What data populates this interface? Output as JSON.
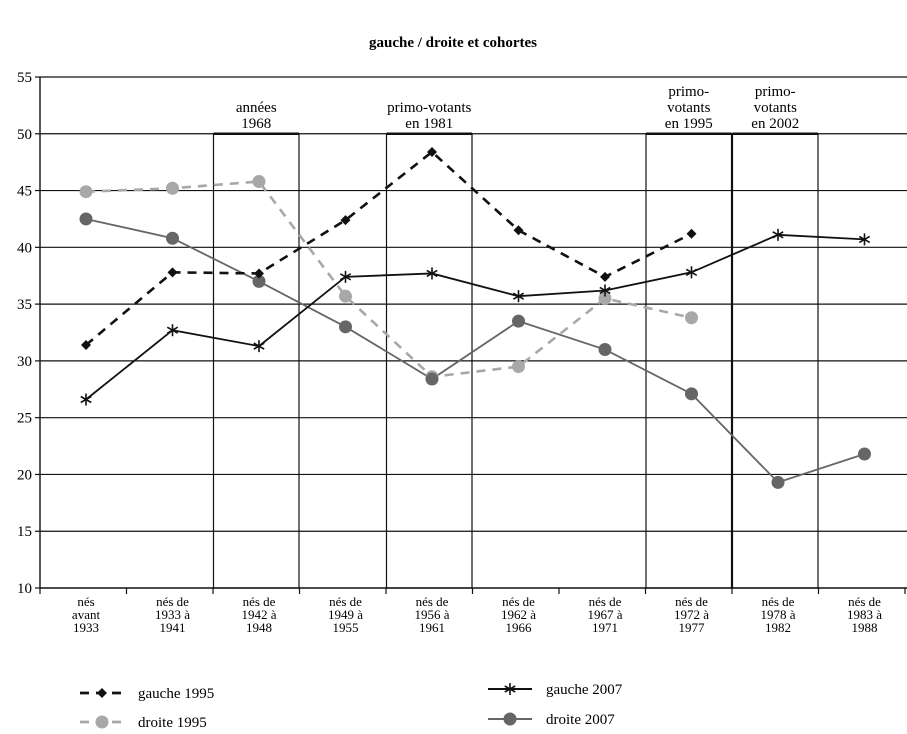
{
  "chart_data": {
    "type": "line",
    "title": "gauche / droite et cohortes",
    "xlabel": "",
    "ylabel": "",
    "ylim": [
      10,
      55
    ],
    "yticks": [
      10,
      15,
      20,
      25,
      30,
      35,
      40,
      45,
      50,
      55
    ],
    "grid": "horizontal",
    "legend_position": "bottom",
    "categories": [
      [
        "nés",
        "avant",
        "1933"
      ],
      [
        "nés de",
        "1933 à",
        "1941"
      ],
      [
        "nés de",
        "1942 à",
        "1948"
      ],
      [
        "nés de",
        "1949 à",
        "1955"
      ],
      [
        "nés de",
        "1956 à",
        "1961"
      ],
      [
        "nés de",
        "1962 à",
        "1966"
      ],
      [
        "nés de",
        "1967 à",
        "1971"
      ],
      [
        "nés de",
        "1972 à",
        "1977"
      ],
      [
        "nés de",
        "1978 à",
        "1982"
      ],
      [
        "nés de",
        "1983 à",
        "1988"
      ]
    ],
    "series": [
      {
        "name": "gauche 1995",
        "style": "dashed",
        "marker": "diamond",
        "color": "#111111",
        "values": [
          31.4,
          37.8,
          37.7,
          42.4,
          48.4,
          41.5,
          37.4,
          41.2,
          null,
          null
        ]
      },
      {
        "name": "droite 1995",
        "style": "dashed",
        "marker": "circle",
        "color": "#a8a8a8",
        "values": [
          44.9,
          45.2,
          45.8,
          35.7,
          28.6,
          29.5,
          35.5,
          33.8,
          null,
          null
        ]
      },
      {
        "name": "gauche 2007",
        "style": "solid",
        "marker": "star",
        "color": "#111111",
        "values": [
          26.6,
          32.7,
          31.3,
          37.4,
          37.7,
          35.7,
          36.2,
          37.8,
          41.1,
          40.7
        ]
      },
      {
        "name": "droite 2007",
        "style": "solid",
        "marker": "circle",
        "color": "#666666",
        "values": [
          42.5,
          40.8,
          37.0,
          33.0,
          28.4,
          33.5,
          31.0,
          27.1,
          19.3,
          21.8
        ]
      }
    ],
    "annotations": [
      {
        "lines": [
          "années",
          "1968"
        ],
        "category_span": [
          2,
          2
        ]
      },
      {
        "lines": [
          "primo-votants",
          "en 1981"
        ],
        "category_span": [
          4,
          4
        ]
      },
      {
        "lines": [
          "primo-",
          "votants",
          "en 1995"
        ],
        "category_span": [
          7,
          7
        ]
      },
      {
        "lines": [
          "primo-",
          "votants",
          "en 2002"
        ],
        "category_span": [
          8,
          8
        ]
      }
    ]
  }
}
